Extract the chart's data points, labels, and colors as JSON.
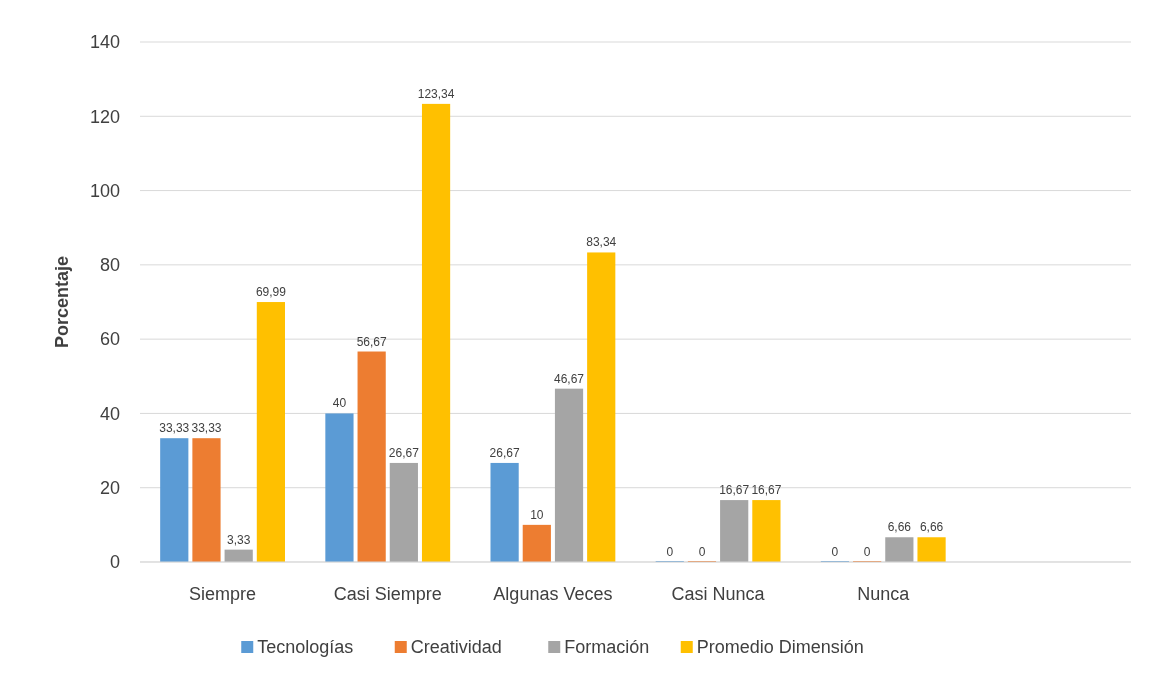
{
  "chart_data": {
    "type": "bar",
    "ylabel": "Porcentaje",
    "categories": [
      "Siempre",
      "Casi Siempre",
      "Algunas Veces",
      "Casi Nunca",
      "Nunca",
      null
    ],
    "series": [
      {
        "name": "Tecnologías",
        "color": "#5b9bd5",
        "values": [
          33.33,
          40,
          26.67,
          0,
          0,
          null
        ],
        "value_labels": [
          "33,33",
          "40",
          "26,67",
          "0",
          "0",
          null
        ]
      },
      {
        "name": "Creatividad",
        "color": "#ed7d31",
        "values": [
          33.33,
          56.67,
          10,
          0,
          0,
          null
        ],
        "value_labels": [
          "33,33",
          "56,67",
          "10",
          "0",
          "0",
          null
        ]
      },
      {
        "name": "Formación",
        "color": "#a5a5a5",
        "values": [
          3.33,
          26.67,
          46.67,
          16.67,
          6.66,
          null
        ],
        "value_labels": [
          "3,33",
          "26,67",
          "46,67",
          "16,67",
          "6,66",
          null
        ]
      },
      {
        "name": "Promedio Dimensión",
        "color": "#ffc000",
        "values": [
          69.99,
          123.34,
          83.34,
          16.67,
          6.66,
          null
        ],
        "value_labels": [
          "69,99",
          "123,34",
          "83,34",
          "16,67",
          "6,66",
          null
        ]
      }
    ],
    "ylim": [
      0,
      140
    ],
    "yticks": [
      0,
      20,
      40,
      60,
      80,
      100,
      120,
      140
    ],
    "grid": "y",
    "legend": "bottom"
  }
}
